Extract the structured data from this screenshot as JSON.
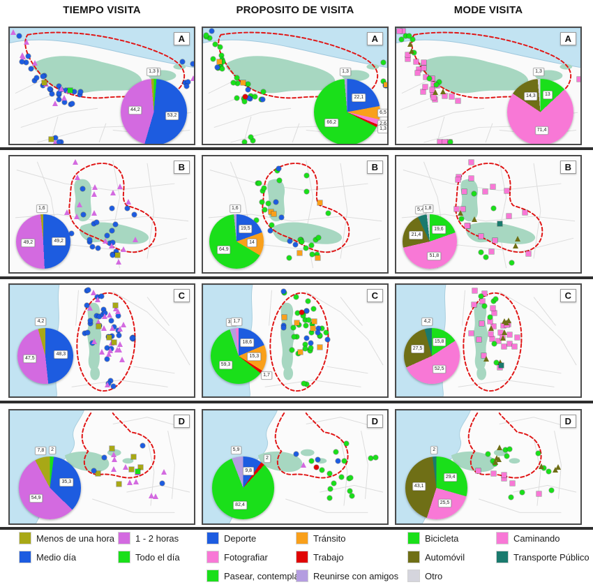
{
  "figure": {
    "columns": [
      "TIEMPO VISITA",
      "PROPOSITO DE VISITA",
      "MODE VISITA"
    ],
    "rows": [
      "A",
      "B",
      "C",
      "D"
    ]
  },
  "palette": {
    "blue": "#1d5ce0",
    "orchid": "#d36ae0",
    "green": "#1adf1a",
    "pink": "#f878d6",
    "timeOlive": "#a8a816",
    "carOlive": "#6f6f16",
    "orange": "#f9a01b",
    "red": "#e00404",
    "lilac": "#b49de0",
    "teal": "#1a7a6e",
    "gray": "#d5d5dd",
    "water": "#c2e3f2",
    "park": "#a7d7c1",
    "dashedRed": "#e01414"
  },
  "chart_data": [
    {
      "type": "pie",
      "panel": "A",
      "column": "TIEMPO VISITA",
      "labels": [
        "Todo el día",
        "Medio día",
        "1 - 2 horas",
        "Menos de una hora"
      ],
      "values": [
        1.3,
        53.2,
        44.2,
        1.3
      ],
      "colors": [
        "green",
        "blue",
        "orchid",
        "timeOlive"
      ]
    },
    {
      "type": "pie",
      "panel": "A",
      "column": "PROPOSITO DE VISITA",
      "labels": [
        "Deporte",
        "Tránsito",
        "Fotografiar",
        "Trabajo",
        "Pasear, contemplar",
        "Reunirse con amigos"
      ],
      "values": [
        22.1,
        6.5,
        2.6,
        1.3,
        66.2,
        1.3
      ],
      "colors": [
        "blue",
        "orange",
        "pink",
        "red",
        "green",
        "lilac"
      ]
    },
    {
      "type": "pie",
      "panel": "A",
      "column": "MODE VISITA",
      "labels": [
        "Bicicleta",
        "Caminando",
        "Automóvil",
        "Otro"
      ],
      "values": [
        13.0,
        71.4,
        14.3,
        1.3
      ],
      "colors": [
        "green",
        "pink",
        "carOlive",
        "gray"
      ]
    },
    {
      "type": "pie",
      "panel": "B",
      "column": "TIEMPO VISITA",
      "labels": [
        "Medio día",
        "1 - 2 horas",
        "Menos de una hora"
      ],
      "values": [
        49.2,
        49.2,
        1.6
      ],
      "colors": [
        "blue",
        "orchid",
        "timeOlive"
      ]
    },
    {
      "type": "pie",
      "panel": "B",
      "column": "PROPOSITO DE VISITA",
      "labels": [
        "Deporte",
        "Tránsito",
        "Pasear, contemplar",
        "Reunirse con amigos"
      ],
      "values": [
        19.5,
        14.0,
        64.9,
        1.6
      ],
      "colors": [
        "blue",
        "orange",
        "green",
        "lilac"
      ]
    },
    {
      "type": "pie",
      "panel": "B",
      "column": "MODE VISITA",
      "labels": [
        "Bicicleta",
        "Caminando",
        "Automóvil",
        "Transporte Público",
        "Otro"
      ],
      "values": [
        19.6,
        51.8,
        21.4,
        5.4,
        1.8
      ],
      "colors": [
        "green",
        "pink",
        "carOlive",
        "teal",
        "gray"
      ]
    },
    {
      "type": "pie",
      "panel": "C",
      "column": "TIEMPO VISITA",
      "labels": [
        "Medio día",
        "1 - 2 horas",
        "Menos de una hora"
      ],
      "values": [
        48.3,
        47.5,
        4.2
      ],
      "colors": [
        "blue",
        "orchid",
        "timeOlive"
      ]
    },
    {
      "type": "pie",
      "panel": "C",
      "column": "PROPOSITO DE VISITA",
      "labels": [
        "Deporte",
        "Tránsito",
        "Trabajo",
        "Pasear, contemplar",
        "Reunirse con amigos",
        "Fotografiar"
      ],
      "values": [
        18.6,
        15.3,
        1.7,
        59.3,
        3.4,
        1.7
      ],
      "colors": [
        "blue",
        "orange",
        "red",
        "green",
        "lilac",
        "pink"
      ]
    },
    {
      "type": "pie",
      "panel": "C",
      "column": "MODE VISITA",
      "labels": [
        "Bicicleta",
        "Caminando",
        "Automóvil",
        "Transporte Público"
      ],
      "values": [
        15.8,
        52.5,
        27.5,
        4.2
      ],
      "colors": [
        "green",
        "pink",
        "carOlive",
        "teal"
      ]
    },
    {
      "type": "pie",
      "panel": "D",
      "column": "TIEMPO VISITA",
      "labels": [
        "Todo el día",
        "Medio día",
        "1 - 2 horas",
        "Menos de una hora"
      ],
      "values": [
        2.0,
        35.3,
        54.9,
        7.8
      ],
      "colors": [
        "green",
        "blue",
        "orchid",
        "timeOlive"
      ]
    },
    {
      "type": "pie",
      "panel": "D",
      "column": "PROPOSITO DE VISITA",
      "labels": [
        "Deporte",
        "Trabajo",
        "Pasear, contemplar",
        "Reunirse con amigos"
      ],
      "values": [
        9.8,
        2.0,
        82.4,
        5.9
      ],
      "colors": [
        "blue",
        "red",
        "green",
        "lilac"
      ]
    },
    {
      "type": "pie",
      "panel": "D",
      "column": "MODE VISITA",
      "labels": [
        "Bicicleta",
        "Caminando",
        "Automóvil",
        "Transporte Público"
      ],
      "values": [
        29.4,
        25.5,
        43.1,
        2.0
      ],
      "colors": [
        "green",
        "pink",
        "carOlive",
        "teal"
      ]
    }
  ],
  "panels": [
    {
      "letter": "A",
      "row": "A",
      "col": 0,
      "chart": 0,
      "markers": [
        {
          "shape": "circle",
          "color": "blue",
          "count": 34
        },
        {
          "shape": "triangle",
          "color": "orchid",
          "count": 12
        },
        {
          "shape": "square",
          "color": "timeOlive",
          "count": 2
        },
        {
          "shape": "square",
          "color": "green",
          "count": 1
        }
      ]
    },
    {
      "letter": "A",
      "row": "A",
      "col": 1,
      "chart": 1,
      "markers": [
        {
          "shape": "circle",
          "color": "green",
          "count": 30
        },
        {
          "shape": "circle",
          "color": "blue",
          "count": 7
        },
        {
          "shape": "square",
          "color": "orange",
          "count": 3
        },
        {
          "shape": "circle",
          "color": "red",
          "count": 1
        }
      ]
    },
    {
      "letter": "A",
      "row": "A",
      "col": 2,
      "chart": 2,
      "markers": [
        {
          "shape": "square",
          "color": "pink",
          "count": 26
        },
        {
          "shape": "circle",
          "color": "green",
          "count": 9
        },
        {
          "shape": "triangle",
          "color": "carOlive",
          "count": 4
        }
      ]
    },
    {
      "letter": "B",
      "row": "B",
      "col": 0,
      "chart": 3,
      "markers": [
        {
          "shape": "circle",
          "color": "blue",
          "count": 20
        },
        {
          "shape": "triangle",
          "color": "orchid",
          "count": 16
        },
        {
          "shape": "square",
          "color": "timeOlive",
          "count": 1
        }
      ]
    },
    {
      "letter": "B",
      "row": "B",
      "col": 1,
      "chart": 4,
      "markers": [
        {
          "shape": "circle",
          "color": "green",
          "count": 24
        },
        {
          "shape": "circle",
          "color": "blue",
          "count": 6
        },
        {
          "shape": "square",
          "color": "orange",
          "count": 5
        }
      ]
    },
    {
      "letter": "B",
      "row": "B",
      "col": 2,
      "chart": 5,
      "markers": [
        {
          "shape": "square",
          "color": "pink",
          "count": 18
        },
        {
          "shape": "circle",
          "color": "green",
          "count": 6
        },
        {
          "shape": "triangle",
          "color": "carOlive",
          "count": 4
        },
        {
          "shape": "square",
          "color": "teal",
          "count": 1
        }
      ]
    },
    {
      "letter": "C",
      "row": "C",
      "col": 0,
      "chart": 6,
      "markers": [
        {
          "shape": "circle",
          "color": "blue",
          "count": 32
        },
        {
          "shape": "triangle",
          "color": "orchid",
          "count": 22
        },
        {
          "shape": "square",
          "color": "timeOlive",
          "count": 4
        }
      ]
    },
    {
      "letter": "C",
      "row": "C",
      "col": 1,
      "chart": 7,
      "markers": [
        {
          "shape": "circle",
          "color": "green",
          "count": 30
        },
        {
          "shape": "circle",
          "color": "blue",
          "count": 9
        },
        {
          "shape": "square",
          "color": "orange",
          "count": 6
        },
        {
          "shape": "circle",
          "color": "red",
          "count": 1
        }
      ]
    },
    {
      "letter": "C",
      "row": "C",
      "col": 2,
      "chart": 8,
      "markers": [
        {
          "shape": "square",
          "color": "pink",
          "count": 26
        },
        {
          "shape": "triangle",
          "color": "carOlive",
          "count": 8
        },
        {
          "shape": "circle",
          "color": "green",
          "count": 7
        },
        {
          "shape": "square",
          "color": "teal",
          "count": 1
        }
      ]
    },
    {
      "letter": "D",
      "row": "D",
      "col": 0,
      "chart": 9,
      "markers": [
        {
          "shape": "triangle",
          "color": "orchid",
          "count": 10
        },
        {
          "shape": "square",
          "color": "timeOlive",
          "count": 6
        },
        {
          "shape": "circle",
          "color": "blue",
          "count": 4
        },
        {
          "shape": "square",
          "color": "green",
          "count": 1
        }
      ]
    },
    {
      "letter": "D",
      "row": "D",
      "col": 1,
      "chart": 10,
      "markers": [
        {
          "shape": "circle",
          "color": "green",
          "count": 16
        },
        {
          "shape": "circle",
          "color": "blue",
          "count": 3
        },
        {
          "shape": "circle",
          "color": "red",
          "count": 1
        },
        {
          "shape": "triangle",
          "color": "orchid",
          "count": 1
        }
      ]
    },
    {
      "letter": "D",
      "row": "D",
      "col": 2,
      "chart": 11,
      "markers": [
        {
          "shape": "circle",
          "color": "green",
          "count": 12
        },
        {
          "shape": "triangle",
          "color": "carOlive",
          "count": 7
        },
        {
          "shape": "square",
          "color": "pink",
          "count": 6
        }
      ]
    }
  ],
  "legend_columns": [
    {
      "items": [
        {
          "label": "Menos de una hora",
          "color": "timeOlive"
        },
        {
          "label": "Medio día",
          "color": "blue"
        }
      ]
    },
    {
      "items": [
        {
          "label": "1 - 2 horas",
          "color": "orchid"
        },
        {
          "label": "Todo el día",
          "color": "green"
        }
      ]
    },
    {
      "items": [
        {
          "label": "Deporte",
          "color": "blue"
        },
        {
          "label": "Fotografiar",
          "color": "pink"
        },
        {
          "label": "Pasear, contemplar",
          "color": "green"
        }
      ]
    },
    {
      "items": [
        {
          "label": "Tránsito",
          "color": "orange"
        },
        {
          "label": "Trabajo",
          "color": "red"
        },
        {
          "label": "Reunirse con amigos",
          "color": "lilac"
        }
      ]
    },
    {
      "items": [
        {
          "label": "Bicicleta",
          "color": "green"
        },
        {
          "label": "Automóvil",
          "color": "carOlive"
        },
        {
          "label": "Otro",
          "color": "gray"
        }
      ]
    },
    {
      "items": [
        {
          "label": "Caminando",
          "color": "pink"
        },
        {
          "label": "Transporte Público",
          "color": "teal"
        }
      ]
    }
  ]
}
